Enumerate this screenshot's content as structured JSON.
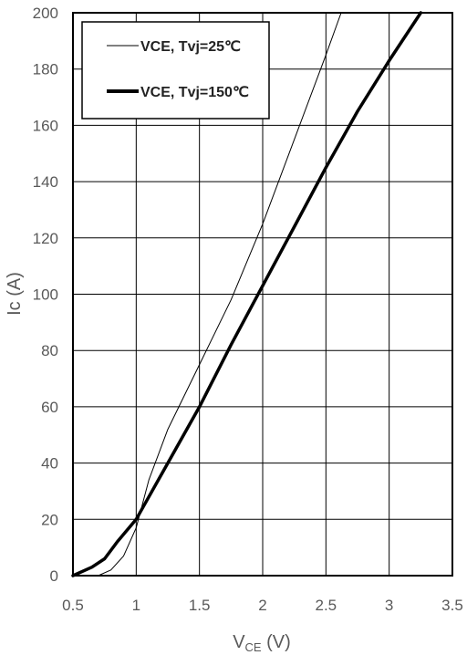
{
  "chart_data": {
    "type": "line",
    "title": "",
    "xlabel": {
      "main": "V",
      "sub": "CE",
      "unit": " (V)"
    },
    "ylabel": "Ic (A)",
    "xlim": [
      0.5,
      3.5
    ],
    "ylim": [
      0,
      200
    ],
    "x_ticks": [
      "0.5",
      "1",
      "1.5",
      "2",
      "2.5",
      "3",
      "3.5"
    ],
    "y_ticks": [
      "0",
      "20",
      "40",
      "60",
      "80",
      "100",
      "120",
      "140",
      "160",
      "180",
      "200"
    ],
    "grid": true,
    "legend_position": "top-left",
    "series": [
      {
        "name": "VCE, Tvj=25℃",
        "color": "#000000",
        "line_weight": "thin",
        "points": [
          [
            0.7,
            0
          ],
          [
            0.8,
            2
          ],
          [
            0.9,
            7
          ],
          [
            1.0,
            17
          ],
          [
            1.1,
            34
          ],
          [
            1.25,
            52
          ],
          [
            1.5,
            75
          ],
          [
            1.75,
            98
          ],
          [
            2.0,
            125
          ],
          [
            2.25,
            155
          ],
          [
            2.5,
            185
          ],
          [
            2.62,
            200
          ]
        ]
      },
      {
        "name": "VCE, Tvj=150℃",
        "color": "#000000",
        "line_weight": "thick",
        "points": [
          [
            0.5,
            0
          ],
          [
            0.65,
            3
          ],
          [
            0.75,
            6
          ],
          [
            0.85,
            12
          ],
          [
            1.0,
            20
          ],
          [
            1.25,
            40
          ],
          [
            1.5,
            60
          ],
          [
            1.75,
            82
          ],
          [
            2.0,
            103
          ],
          [
            2.25,
            124
          ],
          [
            2.5,
            145
          ],
          [
            2.75,
            165
          ],
          [
            3.0,
            183
          ],
          [
            3.25,
            200
          ]
        ]
      }
    ]
  }
}
